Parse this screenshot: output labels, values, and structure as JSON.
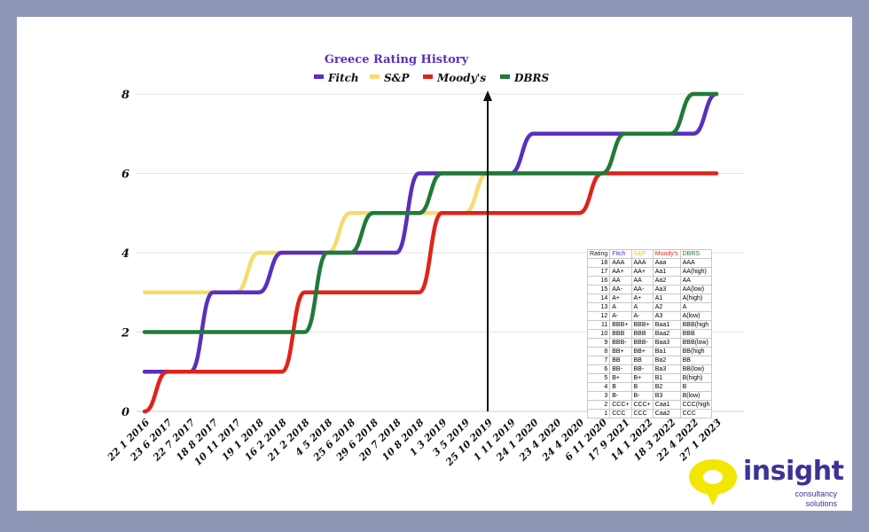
{
  "chart_data": {
    "type": "line",
    "title": "Greece Rating History",
    "xlabel": "",
    "ylabel": "",
    "ylim": [
      0,
      8
    ],
    "yticks": [
      0,
      2,
      4,
      6,
      8
    ],
    "grid": true,
    "legend_position": "top",
    "categories": [
      "22 1 2016",
      "23 6 2017",
      "22 7 2017",
      "18 8 2017",
      "10 11 2017",
      "19 1 2018",
      "16 2 2018",
      "21 2 2018",
      "4 5 2018",
      "25 6 2018",
      "29 6 2018",
      "20 7 2018",
      "10 8 2018",
      "1 3 2019",
      "3 5 2019",
      "25 10 2019",
      "1 11 2019",
      "24 1 2020",
      "23 4 2020",
      "24 4 2020",
      "6 11 2020",
      "17 9 2021",
      "14 1 2022",
      "18 3 2022",
      "22 4 2022",
      "27 1 2023"
    ],
    "vertical_marker": "25 10 2019",
    "series": [
      {
        "name": "Fitch",
        "color": "#5b2fbd",
        "values": [
          1,
          1,
          1,
          3,
          3,
          3,
          4,
          4,
          4,
          4,
          4,
          4,
          6,
          6,
          6,
          6,
          6,
          7,
          7,
          7,
          7,
          7,
          7,
          7,
          7,
          8
        ]
      },
      {
        "name": "S&P",
        "color": "#f6dc6e",
        "values": [
          3,
          3,
          3,
          3,
          3,
          4,
          4,
          4,
          4,
          5,
          5,
          5,
          5,
          5,
          5,
          6,
          6,
          6,
          6,
          6,
          6,
          7,
          7,
          7,
          8,
          8
        ]
      },
      {
        "name": "Moody's",
        "color": "#e0231b",
        "values": [
          0,
          1,
          1,
          1,
          1,
          1,
          1,
          3,
          3,
          3,
          3,
          3,
          3,
          5,
          5,
          5,
          5,
          5,
          5,
          5,
          6,
          6,
          6,
          6,
          6,
          6
        ]
      },
      {
        "name": "DBRS",
        "color": "#1f7a3a",
        "values": [
          2,
          2,
          2,
          2,
          2,
          2,
          2,
          2,
          4,
          4,
          5,
          5,
          5,
          6,
          6,
          6,
          6,
          6,
          6,
          6,
          6,
          7,
          7,
          7,
          8,
          8
        ]
      }
    ]
  },
  "rating_table": {
    "headers": [
      "Rating",
      "Fitch",
      "S&P",
      "Moody's",
      "DBRS"
    ],
    "header_colors": [
      "#222222",
      "#5b2fbd",
      "#e6c24a",
      "#e0231b",
      "#1f7a3a"
    ],
    "rows": [
      [
        "18",
        "AAA",
        "AAA",
        "Aaa",
        "AAA"
      ],
      [
        "17",
        "AA+",
        "AA+",
        "Aa1",
        "AA(high)"
      ],
      [
        "16",
        "AA",
        "AA",
        "Aa2",
        "AA"
      ],
      [
        "15",
        "AA-",
        "AA-",
        "Aa3",
        "AA(low)"
      ],
      [
        "14",
        "A+",
        "A+",
        "A1",
        "A(high)"
      ],
      [
        "13",
        "A",
        "A",
        "A2",
        "A"
      ],
      [
        "12",
        "A-",
        "A-",
        "A3",
        "A(low)"
      ],
      [
        "11",
        "BBB+",
        "BBB+",
        "Baa1",
        "BBB(high"
      ],
      [
        "10",
        "BBB",
        "BBB",
        "Baa2",
        "BBB"
      ],
      [
        "9",
        "BBB-",
        "BBB-",
        "Baa3",
        "BBB(low)"
      ],
      [
        "8",
        "BB+",
        "BB+",
        "Ba1",
        "BB(high"
      ],
      [
        "7",
        "BB",
        "BB",
        "Ba2",
        "BB"
      ],
      [
        "6",
        "BB-",
        "BB-",
        "Ba3",
        "BB(low)"
      ],
      [
        "5",
        "B+",
        "B+",
        "B1",
        "B(high)"
      ],
      [
        "4",
        "B",
        "B",
        "B2",
        "B"
      ],
      [
        "3",
        "B-",
        "B-",
        "B3",
        "B(low)"
      ],
      [
        "2",
        "CCC+",
        "CCC+",
        "Caa1",
        "CCC(high"
      ],
      [
        "1",
        "CCC",
        "CCC",
        "Caa2",
        "CCC"
      ]
    ]
  },
  "logo": {
    "word": "insight",
    "line1": "consultancy",
    "line2": "solutions",
    "accent_color": "#f3e600",
    "brand_color": "#3d3296"
  }
}
